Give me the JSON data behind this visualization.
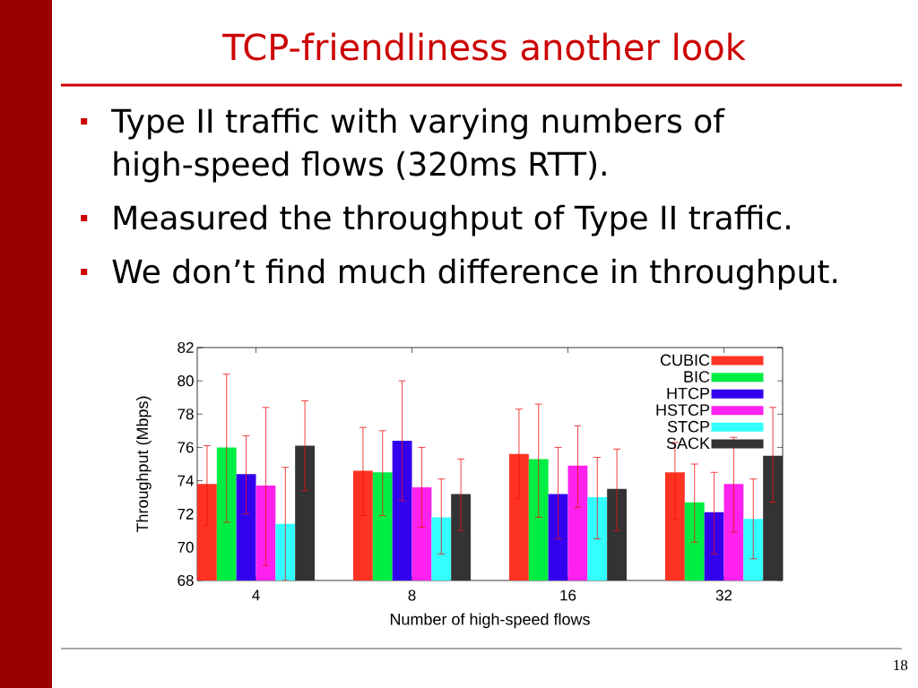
{
  "chart_data": {
    "type": "bar",
    "title": "TCP-friendliness another look",
    "annotations": [
      "Type II traffic with varying numbers of high-speed flows (320ms RTT).",
      "Measured the throughput of Type II traffic.",
      "We don’t find much difference in throughput.",
      "18"
    ],
    "xlabel": "Number of high-speed flows",
    "ylabel": "Throughput (Mbps)",
    "categories": [
      "4",
      "8",
      "16",
      "32"
    ],
    "series": [
      {
        "name": "CUBIC",
        "color": "#ff3322",
        "values": [
          73.8,
          74.6,
          75.6,
          74.5
        ],
        "errors": [
          [
            71.3,
            76.1
          ],
          [
            71.9,
            77.2
          ],
          [
            72.9,
            78.3
          ],
          [
            71.7,
            76.3
          ]
        ]
      },
      {
        "name": "BIC",
        "color": "#00ee44",
        "values": [
          76.0,
          74.5,
          75.3,
          72.7
        ],
        "errors": [
          [
            71.5,
            80.4
          ],
          [
            71.9,
            77.0
          ],
          [
            71.8,
            78.6
          ],
          [
            70.3,
            75.0
          ]
        ]
      },
      {
        "name": "HTCP",
        "color": "#3300ee",
        "values": [
          74.4,
          76.4,
          73.2,
          72.1
        ],
        "errors": [
          [
            72.0,
            76.7
          ],
          [
            72.8,
            80.0
          ],
          [
            70.5,
            76.0
          ],
          [
            69.6,
            74.5
          ]
        ]
      },
      {
        "name": "HSTCP",
        "color": "#ff22ee",
        "values": [
          73.7,
          73.6,
          74.9,
          73.8
        ],
        "errors": [
          [
            68.9,
            78.4
          ],
          [
            71.2,
            76.0
          ],
          [
            72.4,
            77.3
          ],
          [
            70.9,
            76.6
          ]
        ]
      },
      {
        "name": "STCP",
        "color": "#33ffff",
        "values": [
          71.4,
          71.8,
          73.0,
          71.7
        ],
        "errors": [
          [
            68.0,
            74.8
          ],
          [
            69.6,
            74.1
          ],
          [
            70.5,
            75.4
          ],
          [
            69.3,
            74.1
          ]
        ]
      },
      {
        "name": "SACK",
        "color": "#333333",
        "values": [
          76.1,
          73.2,
          73.5,
          75.5
        ],
        "errors": [
          [
            73.4,
            78.8
          ],
          [
            71.0,
            75.3
          ],
          [
            71.0,
            75.9
          ],
          [
            72.7,
            78.4
          ]
        ]
      }
    ],
    "ylim": [
      68,
      82
    ],
    "yticks": [
      68,
      70,
      72,
      74,
      76,
      78,
      80,
      82
    ],
    "legend": "top right"
  }
}
